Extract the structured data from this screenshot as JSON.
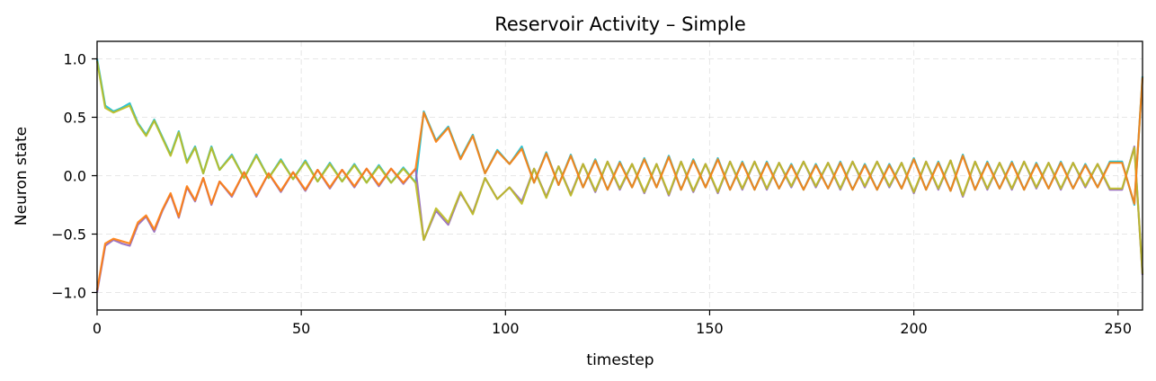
{
  "chart_data": {
    "type": "line",
    "title": "Reservoir Activity – Simple",
    "xlabel": "timestep",
    "ylabel": "Neuron state",
    "xlim": [
      0,
      256
    ],
    "ylim": [
      -1.15,
      1.15
    ],
    "grid": true,
    "legend": "none",
    "xticks": [
      0,
      50,
      100,
      150,
      200,
      250
    ],
    "xtick_labels": [
      "0",
      "50",
      "100",
      "150",
      "200",
      "250"
    ],
    "yticks": [
      -1.0,
      -0.5,
      0.0,
      0.5,
      1.0
    ],
    "ytick_labels": [
      "−1.0",
      "−0.5",
      "0.0",
      "0.5",
      "1.0"
    ],
    "x": [
      0,
      2,
      4,
      6,
      8,
      10,
      12,
      14,
      16,
      18,
      20,
      22,
      24,
      26,
      28,
      30,
      33,
      36,
      39,
      42,
      45,
      48,
      51,
      54,
      57,
      60,
      63,
      66,
      69,
      72,
      75,
      78,
      80,
      83,
      86,
      89,
      92,
      95,
      98,
      101,
      104,
      107,
      110,
      113,
      116,
      119,
      122,
      125,
      128,
      131,
      134,
      137,
      140,
      143,
      146,
      149,
      152,
      155,
      158,
      161,
      164,
      167,
      170,
      173,
      176,
      179,
      182,
      185,
      188,
      191,
      194,
      197,
      200,
      203,
      206,
      209,
      212,
      215,
      218,
      221,
      224,
      227,
      230,
      233,
      236,
      239,
      242,
      245,
      248,
      251,
      254,
      256
    ],
    "series": [
      {
        "color": "#17becf",
        "values": [
          1.0,
          0.6,
          0.55,
          0.58,
          0.62,
          0.45,
          0.35,
          0.48,
          0.33,
          0.18,
          0.38,
          0.12,
          0.25,
          0.02,
          0.25,
          0.05,
          0.18,
          -0.02,
          0.18,
          -0.02,
          0.14,
          -0.03,
          0.13,
          -0.05,
          0.11,
          -0.05,
          0.1,
          -0.06,
          0.09,
          -0.06,
          0.07,
          -0.06,
          0.55,
          0.3,
          0.42,
          0.15,
          0.35,
          0.02,
          0.22,
          0.1,
          0.25,
          -0.06,
          0.2,
          -0.08,
          0.18,
          -0.1,
          0.14,
          -0.12,
          0.12,
          -0.1,
          0.15,
          -0.1,
          0.17,
          -0.12,
          0.14,
          -0.1,
          0.15,
          -0.12,
          0.12,
          -0.12,
          0.12,
          -0.11,
          0.1,
          -0.12,
          0.1,
          -0.11,
          0.12,
          -0.12,
          0.1,
          -0.12,
          0.1,
          -0.11,
          0.15,
          -0.12,
          0.12,
          -0.13,
          0.18,
          -0.12,
          0.12,
          -0.11,
          0.12,
          -0.12,
          0.11,
          -0.11,
          0.12,
          -0.11,
          0.1,
          -0.1,
          0.12,
          0.12,
          -0.25,
          0.85
        ]
      },
      {
        "color": "#9467bd",
        "values": [
          -1.0,
          -0.6,
          -0.55,
          -0.58,
          -0.6,
          -0.42,
          -0.35,
          -0.48,
          -0.3,
          -0.16,
          -0.36,
          -0.1,
          -0.22,
          -0.02,
          -0.25,
          -0.05,
          -0.18,
          0.03,
          -0.18,
          0.02,
          -0.14,
          0.03,
          -0.13,
          0.05,
          -0.11,
          0.05,
          -0.1,
          0.06,
          -0.09,
          0.06,
          -0.07,
          0.06,
          -0.55,
          -0.3,
          -0.42,
          -0.15,
          -0.32,
          -0.02,
          -0.2,
          -0.1,
          -0.22,
          0.06,
          -0.18,
          0.08,
          -0.16,
          0.1,
          -0.14,
          0.12,
          -0.12,
          0.1,
          -0.15,
          0.1,
          -0.17,
          0.12,
          -0.14,
          0.1,
          -0.15,
          0.12,
          -0.12,
          0.12,
          -0.12,
          0.11,
          -0.1,
          0.12,
          -0.1,
          0.11,
          -0.12,
          0.12,
          -0.1,
          0.12,
          -0.1,
          0.11,
          -0.15,
          0.12,
          -0.12,
          0.13,
          -0.18,
          0.12,
          -0.12,
          0.11,
          -0.12,
          0.12,
          -0.11,
          0.11,
          -0.12,
          0.11,
          -0.1,
          0.1,
          -0.12,
          -0.12,
          0.25,
          -0.85
        ]
      },
      {
        "color": "#bcbd22",
        "values": [
          0.98,
          0.58,
          0.54,
          0.57,
          0.6,
          0.44,
          0.34,
          0.47,
          0.32,
          0.17,
          0.37,
          0.11,
          0.24,
          0.02,
          0.24,
          0.05,
          0.17,
          -0.02,
          0.17,
          -0.02,
          0.13,
          -0.03,
          0.12,
          -0.05,
          0.1,
          -0.05,
          0.09,
          -0.06,
          0.08,
          -0.06,
          0.06,
          -0.06,
          -0.55,
          -0.28,
          -0.4,
          -0.14,
          -0.33,
          -0.02,
          -0.2,
          -0.1,
          -0.24,
          0.06,
          -0.19,
          0.08,
          -0.17,
          0.1,
          -0.13,
          0.12,
          -0.11,
          0.1,
          -0.14,
          0.1,
          -0.16,
          0.12,
          -0.13,
          0.1,
          -0.14,
          0.12,
          -0.11,
          0.12,
          -0.11,
          0.11,
          -0.09,
          0.12,
          -0.09,
          0.11,
          -0.11,
          0.12,
          -0.09,
          0.12,
          -0.09,
          0.11,
          -0.14,
          0.12,
          -0.11,
          0.13,
          -0.17,
          0.12,
          -0.11,
          0.11,
          -0.11,
          0.12,
          -0.1,
          0.11,
          -0.11,
          0.11,
          -0.09,
          0.1,
          -0.11,
          -0.11,
          0.24,
          -0.84
        ]
      },
      {
        "color": "#ff7f0e",
        "values": [
          -0.98,
          -0.58,
          -0.54,
          -0.56,
          -0.58,
          -0.4,
          -0.34,
          -0.46,
          -0.29,
          -0.15,
          -0.35,
          -0.09,
          -0.21,
          -0.02,
          -0.24,
          -0.05,
          -0.17,
          0.03,
          -0.17,
          0.02,
          -0.13,
          0.03,
          -0.12,
          0.05,
          -0.1,
          0.05,
          -0.09,
          0.06,
          -0.08,
          0.06,
          -0.06,
          0.06,
          0.54,
          0.29,
          0.41,
          0.14,
          0.34,
          0.02,
          0.21,
          0.1,
          0.23,
          -0.06,
          0.19,
          -0.08,
          0.17,
          -0.1,
          0.13,
          -0.12,
          0.11,
          -0.1,
          0.14,
          -0.1,
          0.16,
          -0.12,
          0.13,
          -0.1,
          0.14,
          -0.12,
          0.11,
          -0.12,
          0.11,
          -0.11,
          0.09,
          -0.12,
          0.09,
          -0.11,
          0.11,
          -0.12,
          0.09,
          -0.12,
          0.09,
          -0.11,
          0.14,
          -0.12,
          0.11,
          -0.13,
          0.17,
          -0.12,
          0.11,
          -0.11,
          0.11,
          -0.12,
          0.1,
          -0.11,
          0.11,
          -0.11,
          0.09,
          -0.1,
          0.11,
          0.11,
          -0.24,
          0.84
        ]
      }
    ]
  }
}
